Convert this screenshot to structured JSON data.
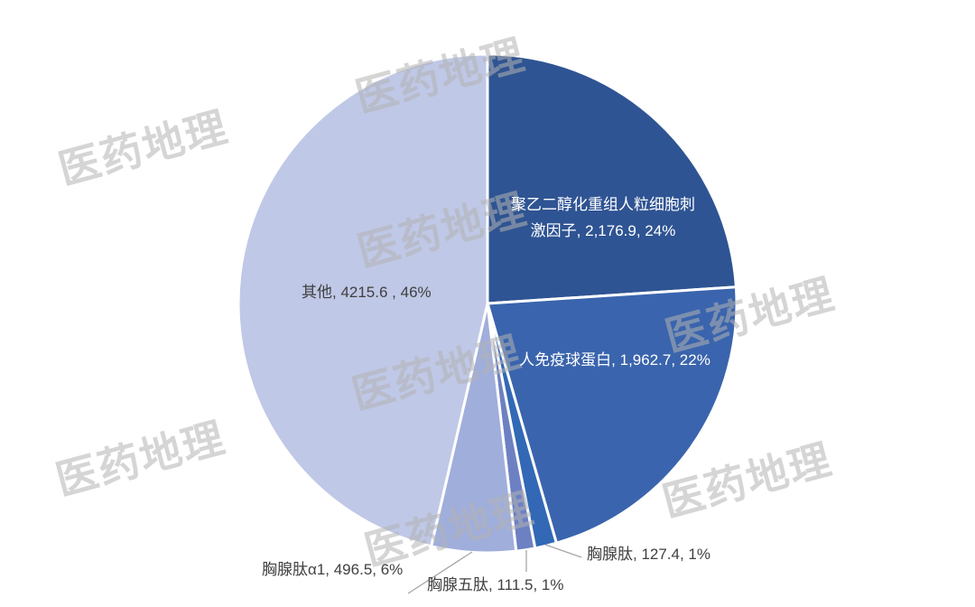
{
  "watermark": {
    "text": "医药地理",
    "color_hex": "#b2b2b2"
  },
  "styles": {
    "background": "#ffffff",
    "outside_label_color": "#404040",
    "inner_label_color": "#ffffff",
    "leader_line_color": "#a6a6a6"
  },
  "chart_data": {
    "type": "pie",
    "title": "",
    "legend": "none",
    "direction": "clockwise",
    "start_angle_deg": 0,
    "slices": [
      {
        "name": "聚乙二醇化重组人粒细胞刺激因子",
        "value": 2176.9,
        "value_display": "2,176.9",
        "percent": "24%",
        "color": "#2F5493",
        "label_line1": "聚乙二醇化重组人粒细胞刺",
        "label_line2": "激因子, 2,176.9, 24%"
      },
      {
        "name": "人免疫球蛋白",
        "value": 1962.7,
        "value_display": "1,962.7",
        "percent": "22%",
        "color": "#3A64AD",
        "callout": "人免疫球蛋白, 1,962.7, 22%"
      },
      {
        "name": "胸腺肽",
        "value": 127.4,
        "value_display": "127.4",
        "percent": "1%",
        "color": "#3268B5",
        "callout": "胸腺肽, 127.4, 1%"
      },
      {
        "name": "胸腺五肽",
        "value": 111.5,
        "value_display": "111.5",
        "percent": "1%",
        "color": "#6D81C2",
        "callout": "胸腺五肽, 111.5, 1%"
      },
      {
        "name": "胸腺肽α1",
        "value": 496.5,
        "value_display": "496.5",
        "percent": "6%",
        "color": "#A0AEDB",
        "callout": "胸腺肽α1, 496.5, 6%"
      },
      {
        "name": "其他",
        "value": 4215.6,
        "value_display": "4215.6",
        "percent": "46%",
        "color": "#BFC8E6",
        "callout": "其他, 4215.6 , 46%"
      }
    ]
  }
}
